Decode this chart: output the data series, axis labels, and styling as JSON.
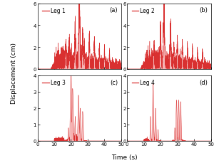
{
  "title": "",
  "xlabel": "Time (s)",
  "ylabel": "Displacement (cm)",
  "panels": [
    "(a)",
    "(b)",
    "(c)",
    "(d)"
  ],
  "leg_labels": [
    "Leg 1",
    "Leg 2",
    "Leg 3",
    "Leg 4"
  ],
  "xlim": [
    0,
    50
  ],
  "ylims": [
    [
      0,
      6
    ],
    [
      0,
      6
    ],
    [
      0,
      4
    ],
    [
      0,
      4
    ]
  ],
  "yticks_top": [
    0,
    2,
    4,
    6
  ],
  "yticks_bot": [
    0,
    1,
    2,
    3,
    4
  ],
  "xticks": [
    0,
    10,
    20,
    30,
    40,
    50
  ],
  "line_color": "#d93030",
  "line_color_fill": "#f08080",
  "bg_color": "#ffffff",
  "line_width": 0.3,
  "figsize": [
    3.0,
    2.3
  ],
  "dpi": 100,
  "dt": 0.01,
  "duration": 50.0
}
